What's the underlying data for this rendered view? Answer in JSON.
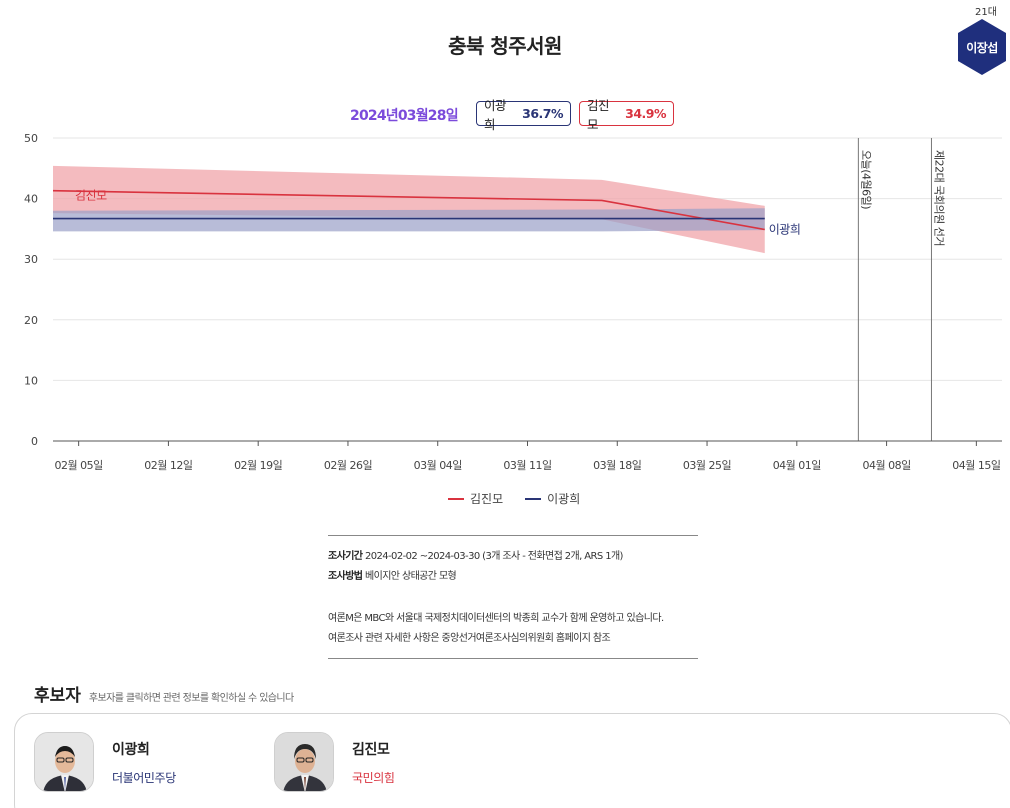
{
  "header": {
    "title": "충북 청주서원",
    "term": "21대",
    "incumbent": "이장섭"
  },
  "summary": {
    "date": "2024년03월28일",
    "lee_name": "이광희",
    "lee_pct": "36.7%",
    "kim_name": "김진모",
    "kim_pct": "34.9%"
  },
  "colors": {
    "kim": "#d9333f",
    "kim_band": "#f0a4aa",
    "lee": "#2a3576",
    "lee_band": "#9aa0c8",
    "accent": "#7b4bdb",
    "badge": "#1f2f7d"
  },
  "chart_data": {
    "type": "line",
    "title": "",
    "xlabel": "",
    "ylabel": "",
    "ylim": [
      0,
      50
    ],
    "yticks": [
      0,
      10,
      20,
      30,
      40,
      50
    ],
    "xlim_days": [
      -2,
      72
    ],
    "xticks": [
      {
        "day": 0,
        "label": "02월 05일"
      },
      {
        "day": 7,
        "label": "02월 12일"
      },
      {
        "day": 14,
        "label": "02월 19일"
      },
      {
        "day": 21,
        "label": "02월 26일"
      },
      {
        "day": 28,
        "label": "03월 04일"
      },
      {
        "day": 35,
        "label": "03월 11일"
      },
      {
        "day": 42,
        "label": "03월 18일"
      },
      {
        "day": 49,
        "label": "03월 25일"
      },
      {
        "day": 56,
        "label": "04월 01일"
      },
      {
        "day": 63,
        "label": "04월 08일"
      },
      {
        "day": 70,
        "label": "04월 15일"
      }
    ],
    "series": [
      {
        "name": "김진모",
        "color": "#d9333f",
        "band_color": "#f0a4aa",
        "days": [
          -2,
          40.8,
          53.5
        ],
        "values": [
          41.3,
          39.7,
          34.9
        ],
        "upper": [
          45.4,
          43.1,
          38.8
        ],
        "lower": [
          37.6,
          36.6,
          31.0
        ]
      },
      {
        "name": "이광희",
        "color": "#2a3576",
        "band_color": "#9aa0c8",
        "days": [
          -2,
          40.8,
          53.5
        ],
        "values": [
          36.7,
          36.7,
          36.7
        ],
        "upper": [
          38.0,
          38.2,
          38.4
        ],
        "lower": [
          34.6,
          34.6,
          34.8
        ]
      }
    ],
    "annotations": [
      {
        "day": 60.8,
        "label": "오늘(4월6일)"
      },
      {
        "day": 66.5,
        "label": "제22대 국회의원 선거"
      }
    ],
    "legend": [
      "김진모",
      "이광희"
    ]
  },
  "survey": {
    "period_label": "조사기간",
    "period_value": "2024-02-02 ~2024-03-30 (3개 조사 - 전화면접 2개, ARS 1개)",
    "method_label": "조사방법",
    "method_value": "베이지안 상태공간 모형",
    "note1": "여론M은 MBC와 서울대 국제정치데이터센터의 박종희 교수가 함께 운영하고 있습니다.",
    "note2": "여론조사 관련 자세한 사항은 중앙선거여론조사심의위원회 홈페이지 참조"
  },
  "candidates": {
    "title": "후보자",
    "hint": "후보자를 클릭하면 관련 정보를 확인하실 수 있습니다",
    "items": [
      {
        "name": "이광희",
        "party": "더불어민주당"
      },
      {
        "name": "김진모",
        "party": "국민의힘"
      }
    ]
  }
}
